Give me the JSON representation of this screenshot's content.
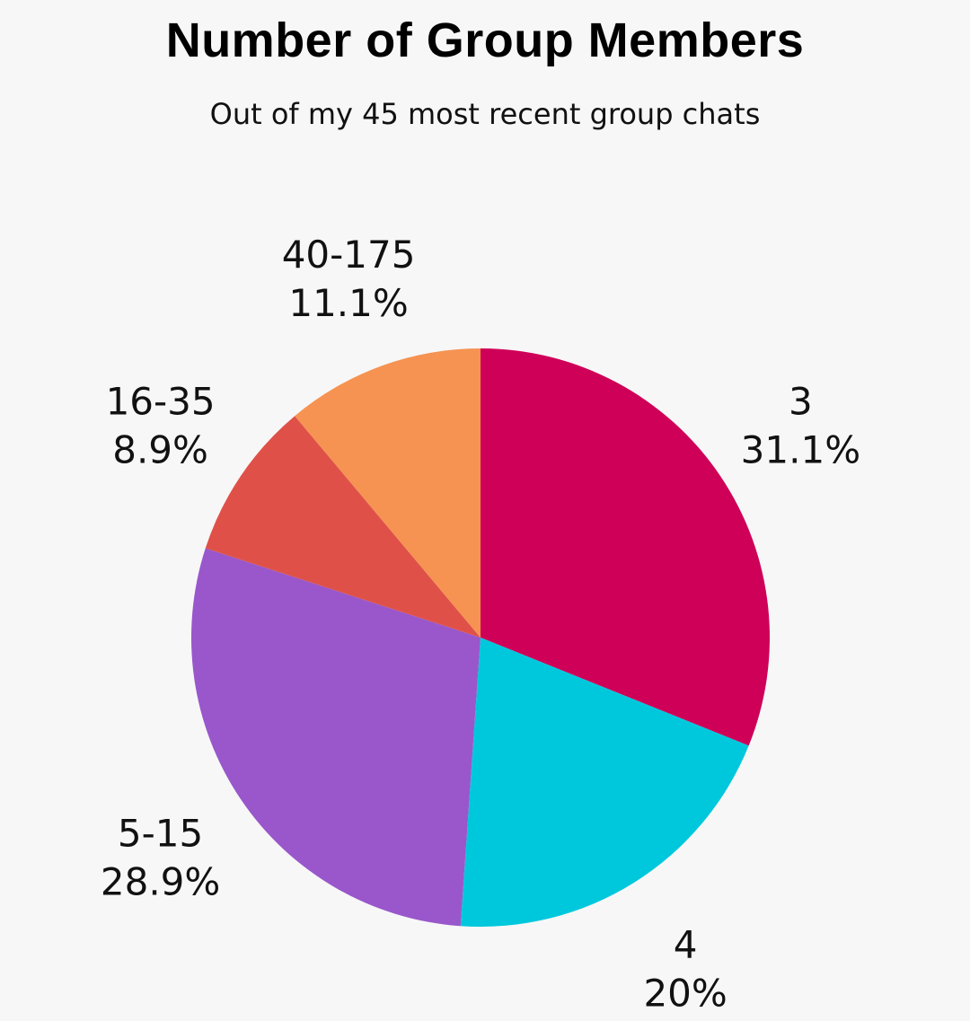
{
  "chart_data": {
    "type": "pie",
    "title": "Number of Group Members",
    "subtitle": "Out of my 45 most recent group chats",
    "slices": [
      {
        "name": "3",
        "label": "31.1%",
        "value": 31.1,
        "color": "#cf0058"
      },
      {
        "name": "4",
        "label": "20%",
        "value": 20.0,
        "color": "#00c8dc"
      },
      {
        "name": "5-15",
        "label": "28.9%",
        "value": 28.9,
        "color": "#9957cb"
      },
      {
        "name": "16-35",
        "label": "8.9%",
        "value": 8.9,
        "color": "#df5148"
      },
      {
        "name": "40-175",
        "label": "11.1%",
        "value": 11.1,
        "color": "#f69352"
      }
    ],
    "start_angle": "12 o'clock",
    "direction": "clockwise",
    "legend": "none"
  }
}
